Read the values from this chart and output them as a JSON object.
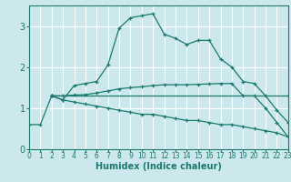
{
  "xlabel": "Humidex (Indice chaleur)",
  "background_color": "#cce8ec",
  "grid_color": "#b0d8de",
  "line_color": "#1a7a6e",
  "series": [
    {
      "x": [
        0,
        1,
        2,
        3,
        4,
        5,
        6,
        7,
        8,
        9,
        10,
        11,
        12,
        13,
        14,
        15,
        16,
        17,
        18,
        19,
        20,
        21,
        22,
        23
      ],
      "y": [
        0.6,
        0.6,
        1.3,
        1.2,
        1.55,
        1.6,
        1.65,
        2.05,
        2.95,
        3.2,
        3.25,
        3.3,
        2.8,
        2.7,
        2.55,
        2.65,
        2.65,
        2.2,
        2.0,
        1.65,
        1.6,
        1.3,
        0.95,
        0.65
      ]
    },
    {
      "x": [
        2,
        3,
        4,
        5,
        6,
        7,
        8,
        9,
        10,
        11,
        12,
        13,
        14,
        15,
        16,
        17,
        18,
        19,
        20,
        21,
        22,
        23
      ],
      "y": [
        1.3,
        1.3,
        1.32,
        1.33,
        1.37,
        1.42,
        1.47,
        1.5,
        1.52,
        1.55,
        1.57,
        1.57,
        1.57,
        1.58,
        1.59,
        1.6,
        1.6,
        1.3,
        1.3,
        1.0,
        0.65,
        0.3
      ]
    },
    {
      "x": [
        2,
        23
      ],
      "y": [
        1.3,
        1.3
      ]
    },
    {
      "x": [
        2,
        3,
        4,
        5,
        6,
        7,
        8,
        9,
        10,
        11,
        12,
        13,
        14,
        15,
        16,
        17,
        18,
        19,
        20,
        21,
        22,
        23
      ],
      "y": [
        1.3,
        1.2,
        1.15,
        1.1,
        1.05,
        1.0,
        0.95,
        0.9,
        0.85,
        0.85,
        0.8,
        0.75,
        0.7,
        0.7,
        0.65,
        0.6,
        0.6,
        0.55,
        0.5,
        0.45,
        0.4,
        0.3
      ]
    }
  ],
  "xlim": [
    0,
    23
  ],
  "ylim": [
    0,
    3.5
  ],
  "yticks": [
    0,
    1,
    2,
    3
  ],
  "xticks": [
    0,
    1,
    2,
    3,
    4,
    5,
    6,
    7,
    8,
    9,
    10,
    11,
    12,
    13,
    14,
    15,
    16,
    17,
    18,
    19,
    20,
    21,
    22,
    23
  ],
  "tick_fontsize": 5.5,
  "ylabel_fontsize": 6.5,
  "xlabel_fontsize": 7
}
